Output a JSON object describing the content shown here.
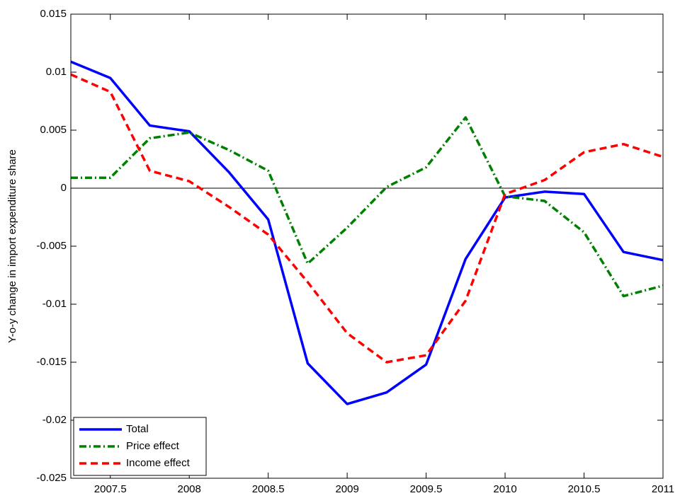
{
  "chart_data": {
    "type": "line",
    "ylabel": "Y-o-y change in import expenditure share",
    "x": [
      2007.25,
      2007.5,
      2007.75,
      2008,
      2008.25,
      2008.5,
      2008.75,
      2009,
      2009.25,
      2009.5,
      2009.75,
      2010,
      2010.25,
      2010.5,
      2010.75,
      2011
    ],
    "series": [
      {
        "name": "Total",
        "color": "#0000ff",
        "dash": "solid",
        "values": [
          0.0109,
          0.0095,
          0.0054,
          0.0049,
          0.0014,
          -0.0027,
          -0.0151,
          -0.0186,
          -0.0176,
          -0.0152,
          -0.0061,
          -0.0008,
          -0.0003,
          -0.0005,
          -0.0055,
          -0.0062
        ]
      },
      {
        "name": "Price effect",
        "color": "#008000",
        "dash": "dashdot",
        "values": [
          0.0009,
          0.0009,
          0.0043,
          0.0048,
          0.0033,
          0.0015,
          -0.0065,
          -0.0034,
          0.0001,
          0.0018,
          0.0061,
          -0.0007,
          -0.0011,
          -0.0038,
          -0.0093,
          -0.0084
        ]
      },
      {
        "name": "Income effect",
        "color": "#ff0000",
        "dash": "dashed",
        "values": [
          0.0098,
          0.0083,
          0.0015,
          0.0006,
          -0.0016,
          -0.004,
          -0.0081,
          -0.0125,
          -0.015,
          -0.0144,
          -0.0097,
          -0.0005,
          0.0007,
          0.0031,
          0.0038,
          0.0027
        ]
      }
    ],
    "xlim": [
      2007.25,
      2011
    ],
    "xticks": [
      2007.5,
      2008,
      2008.5,
      2009,
      2009.5,
      2010,
      2010.5,
      2011
    ],
    "ylim": [
      -0.025,
      0.015
    ],
    "yticks": [
      -0.025,
      -0.02,
      -0.015,
      -0.01,
      -0.005,
      0,
      0.005,
      0.01,
      0.015
    ],
    "grid": false,
    "legend": "lower left"
  }
}
